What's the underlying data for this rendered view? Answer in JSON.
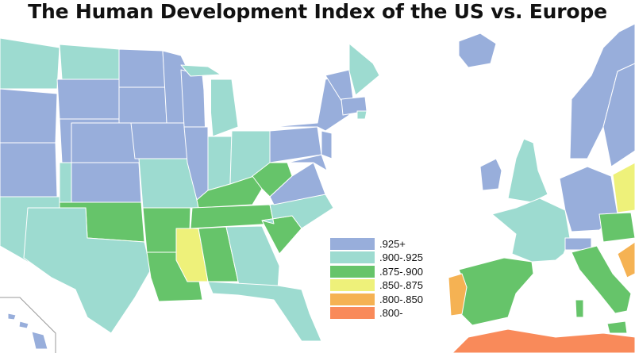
{
  "title": "The Human Development Index of the US vs. Europe",
  "colors": {
    "c925": "#98aedb",
    "c900": "#9ddbd0",
    "c875": "#66c46a",
    "c850": "#eef17a",
    "c800": "#f5b253",
    "c000": "#f98a5a"
  },
  "legend": [
    {
      "label": ".925+",
      "color": "#98aedb"
    },
    {
      "label": ".900-.925",
      "color": "#9ddbd0"
    },
    {
      "label": ".875-.900",
      "color": "#66c46a"
    },
    {
      "label": ".850-.875",
      "color": "#eef17a"
    },
    {
      "label": ".800-.850",
      "color": "#f5b253"
    },
    {
      "label": ".800-",
      "color": "#f98a5a"
    }
  ]
}
